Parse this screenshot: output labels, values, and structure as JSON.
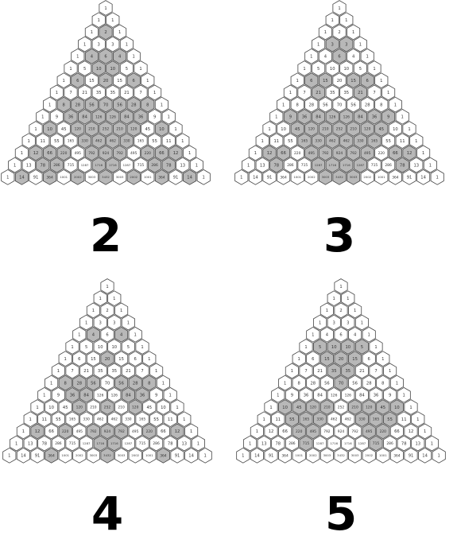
{
  "figure": {
    "title": "",
    "description_rows": 15,
    "panels": [
      {
        "label": "2",
        "modulus": 2
      },
      {
        "label": "3",
        "modulus": 3
      },
      {
        "label": "4",
        "modulus": 4
      },
      {
        "label": "5",
        "modulus": 5
      }
    ]
  },
  "style": {
    "cell_fill_plain": "#ffffff",
    "cell_fill_shaded": "#b8b8b8",
    "cell_stroke": "#444444",
    "label_color": "#000000"
  }
}
